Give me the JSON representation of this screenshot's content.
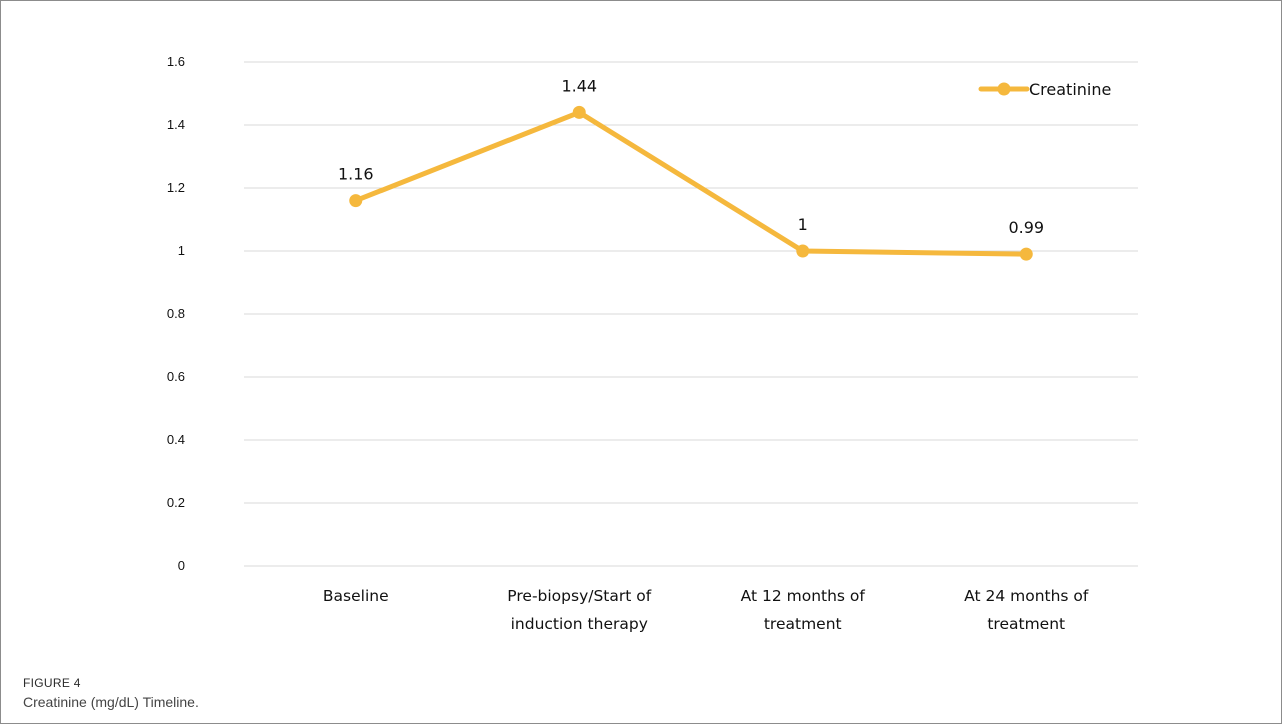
{
  "figure": {
    "label": "FIGURE 4",
    "caption": "Creatinine (mg/dL) Timeline."
  },
  "chart_data": {
    "type": "line",
    "categories": [
      [
        "Baseline"
      ],
      [
        "Pre-biopsy/Start of",
        "induction therapy"
      ],
      [
        "At 12 months of",
        "treatment"
      ],
      [
        "At 24 months of",
        "treatment"
      ]
    ],
    "series": [
      {
        "name": "Creatinine",
        "values": [
          1.16,
          1.44,
          1,
          0.99
        ],
        "data_labels": [
          "1.16",
          "1.44",
          "1",
          "0.99"
        ],
        "color": "#f5b83d"
      }
    ],
    "y_ticks": [
      "0",
      "0.2",
      "0.4",
      "0.6",
      "0.8",
      "1",
      "1.2",
      "1.4",
      "1.6"
    ],
    "ylim": [
      0,
      1.6
    ],
    "grid": true,
    "gridline_color": "#d9d9d9",
    "legend": "top-right",
    "title": "",
    "xlabel": "",
    "ylabel": ""
  }
}
